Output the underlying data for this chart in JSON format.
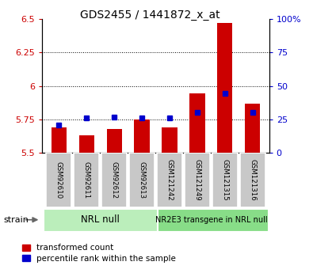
{
  "title": "GDS2455 / 1441872_x_at",
  "samples": [
    "GSM92610",
    "GSM92611",
    "GSM92612",
    "GSM92613",
    "GSM121242",
    "GSM121249",
    "GSM121315",
    "GSM121316"
  ],
  "red_tops": [
    5.69,
    5.63,
    5.68,
    5.75,
    5.69,
    5.945,
    6.47,
    5.865
  ],
  "blue_vals": [
    5.71,
    5.76,
    5.765,
    5.762,
    5.762,
    5.805,
    5.945,
    5.805
  ],
  "bar_bottom": 5.5,
  "ylim_left": [
    5.5,
    6.5
  ],
  "ylim_right": [
    0,
    100
  ],
  "yticks_left": [
    5.5,
    5.75,
    6.0,
    6.25,
    6.5
  ],
  "yticks_right": [
    0,
    25,
    50,
    75,
    100
  ],
  "ytick_labels_left": [
    "5.5",
    "5.75",
    "6",
    "6.25",
    "6.5"
  ],
  "ytick_labels_right": [
    "0",
    "25",
    "50",
    "75",
    "100%"
  ],
  "hlines": [
    5.75,
    6.0,
    6.25
  ],
  "group1_label": "NRL null",
  "group2_label": "NR2E3 transgene in NRL null",
  "group1_color": "#bbeebb",
  "group2_color": "#88dd88",
  "bar_color": "#cc0000",
  "blue_color": "#0000cc",
  "tick_color_left": "#cc0000",
  "tick_color_right": "#0000cc",
  "bar_width": 0.55,
  "blue_marker_size": 5,
  "legend_red": "transformed count",
  "legend_blue": "percentile rank within the sample"
}
